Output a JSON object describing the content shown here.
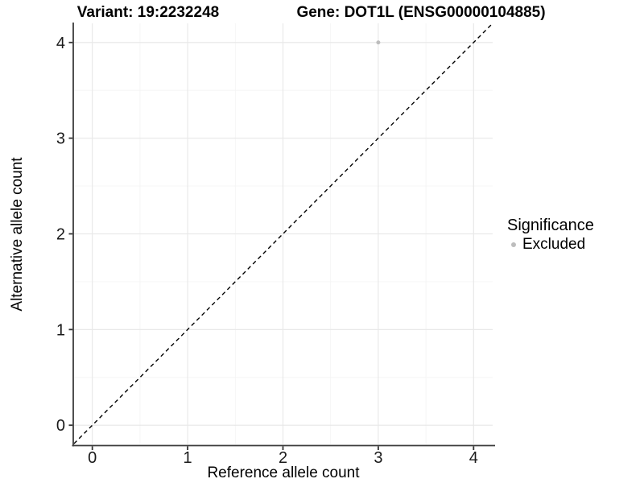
{
  "chart_data": {
    "type": "scatter",
    "titles": {
      "left": "Variant: 19:2232248",
      "right": "Gene: DOT1L (ENSG00000104885)"
    },
    "xlabel": "Reference allele count",
    "ylabel": "Alternative allele count",
    "xlim": [
      -0.2,
      4.2
    ],
    "ylim": [
      -0.2,
      4.2
    ],
    "x_ticks": [
      0,
      1,
      2,
      3,
      4
    ],
    "y_ticks": [
      0,
      1,
      2,
      3,
      4
    ],
    "x_minor_ticks": [
      0.5,
      1.5,
      2.5,
      3.5
    ],
    "y_minor_ticks": [
      0.5,
      1.5,
      2.5,
      3.5
    ],
    "grid": true,
    "series": [
      {
        "name": "Excluded",
        "color": "#bdbdbd",
        "points": [
          {
            "x": 3,
            "y": 4
          }
        ]
      }
    ],
    "reference_line": {
      "style": "dashed",
      "color": "#000000",
      "from": [
        -0.3,
        -0.3
      ],
      "to": [
        4.3,
        4.3
      ]
    },
    "legend": {
      "title": "Significance",
      "position": "right",
      "entries": [
        {
          "label": "Excluded",
          "color": "#bdbdbd"
        }
      ]
    },
    "colors": {
      "grid_major": "#e9e9e9",
      "grid_minor": "#f4f4f4",
      "axis_line": "#3d3d3d",
      "tick_mark": "#333333",
      "tick_label": "#1a1a1a",
      "background": "#ffffff"
    }
  }
}
